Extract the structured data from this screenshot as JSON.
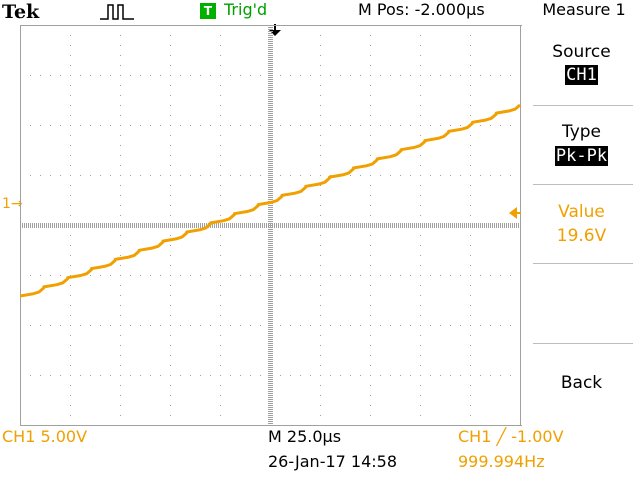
{
  "header": {
    "brand": "Tek",
    "trigger_badge": "T",
    "trigger_status": "Trig'd",
    "horizontal_position": "M Pos: -2.000µs",
    "menu_title": "Measure 1"
  },
  "side_menu": {
    "source_label": "Source",
    "source_value": "CH1",
    "type_label": "Type",
    "type_value": "Pk-Pk",
    "value_label": "Value",
    "value_reading": "19.6V",
    "back_label": "Back"
  },
  "footer": {
    "channel_scale": "CH1  5.00V",
    "timebase": "M 25.0µs",
    "datetime": "26-Jan-17 14:58",
    "trigger_setting": "CH1 ╱ -1.00V",
    "frequency": "999.994Hz"
  },
  "markers": {
    "channel_ground": "1→"
  },
  "colors": {
    "trace": "#f0a000",
    "grid": "#a0a0a0",
    "trigger_green": "#00b000"
  },
  "icons": {
    "acquisition": "pulse-run-icon",
    "trigger_position": "trigger-position-arrow-icon",
    "trigger_level": "trigger-level-arrow-icon"
  },
  "waveform": {
    "volts_per_div": 5.0,
    "time_per_div_us": 25.0,
    "description": "staircase ramp",
    "step_count": 21
  }
}
